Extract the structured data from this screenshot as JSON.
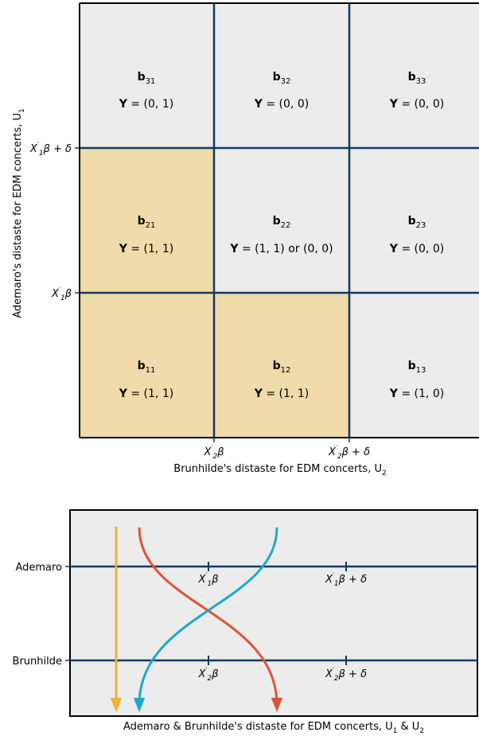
{
  "top": {
    "y_axis_label": "Ademaro's distaste for EDM concerts, U",
    "y_axis_sub": "1",
    "x_axis_label": "Brunhilde's distaste for EDM concerts, U",
    "x_axis_sub": "2",
    "y_ticks": [
      {
        "main": "X",
        "sub": "1",
        "rest": "β + δ"
      },
      {
        "main": "X",
        "sub": "1",
        "rest": "β"
      }
    ],
    "x_ticks": [
      {
        "main": "X",
        "sub": "2",
        "rest": "β"
      },
      {
        "main": "X",
        "sub": "2",
        "rest": "β + δ"
      }
    ],
    "cells": [
      {
        "row": 3,
        "col": 1,
        "b": "b",
        "bsub": "31",
        "y": "= (0, 1)",
        "highlight": false
      },
      {
        "row": 3,
        "col": 2,
        "b": "b",
        "bsub": "32",
        "y": "= (0, 0)",
        "highlight": false
      },
      {
        "row": 3,
        "col": 3,
        "b": "b",
        "bsub": "33",
        "y": "= (0, 0)",
        "highlight": false
      },
      {
        "row": 2,
        "col": 1,
        "b": "b",
        "bsub": "21",
        "y": "= (1, 1)",
        "highlight": true
      },
      {
        "row": 2,
        "col": 2,
        "b": "b",
        "bsub": "22",
        "y": "= (1, 1) or (0, 0)",
        "highlight": false
      },
      {
        "row": 2,
        "col": 3,
        "b": "b",
        "bsub": "23",
        "y": "= (0, 0)",
        "highlight": false
      },
      {
        "row": 1,
        "col": 1,
        "b": "b",
        "bsub": "11",
        "y": "= (1, 1)",
        "highlight": true
      },
      {
        "row": 1,
        "col": 2,
        "b": "b",
        "bsub": "12",
        "y": "= (1, 1)",
        "highlight": true
      },
      {
        "row": 1,
        "col": 3,
        "b": "b",
        "bsub": "13",
        "y": "= (1, 0)",
        "highlight": false
      }
    ],
    "y_symbol": "Y"
  },
  "bottom": {
    "rows": [
      {
        "label": "Ademaro",
        "ticks": [
          {
            "main": "X",
            "sub": "1",
            "rest": "β"
          },
          {
            "main": "X",
            "sub": "1",
            "rest": "β + δ"
          }
        ]
      },
      {
        "label": "Brunhilde",
        "ticks": [
          {
            "main": "X",
            "sub": "2",
            "rest": "β"
          },
          {
            "main": "X",
            "sub": "2",
            "rest": "β + δ"
          }
        ]
      }
    ],
    "x_axis_label": "Ademaro & Brunhilde's distaste for EDM concerts, U",
    "x_axis_sub1": "1",
    "x_axis_mid": " & U",
    "x_axis_sub2": "2"
  },
  "colors": {
    "grid_line": "#0f3a63",
    "cell_bg": "#ececec",
    "highlight": "#f0dbaa",
    "arrow_orange": "#f2b134",
    "arrow_red": "#e0533a",
    "arrow_blue": "#1fa8cc"
  }
}
